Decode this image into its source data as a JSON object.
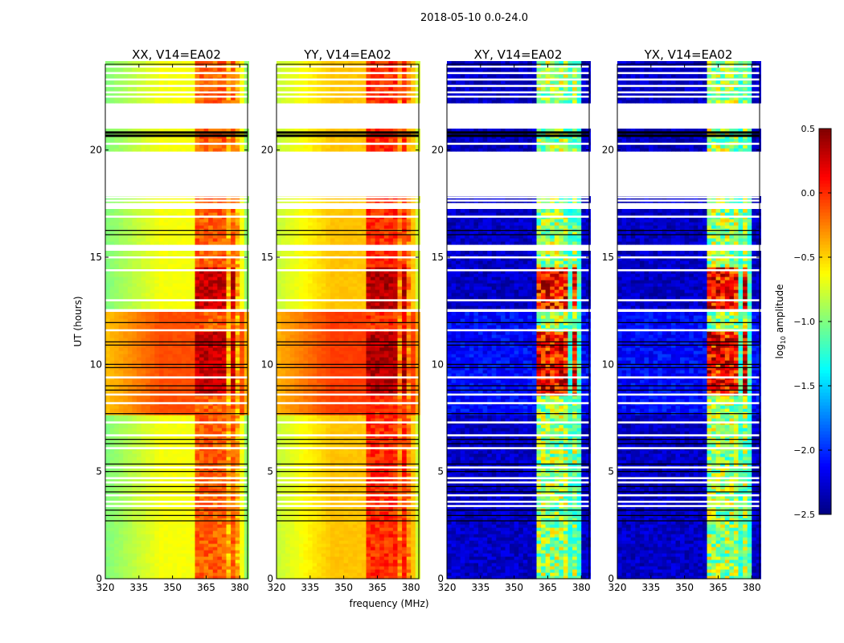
{
  "chart_data": {
    "type": "heatmap",
    "title": "2018-05-10 0.0-24.0",
    "xlabel": "frequency (MHz)",
    "ylabel": "UT (hours)",
    "xlim": [
      320,
      383.5
    ],
    "ylim": [
      0,
      24
    ],
    "xticks": [
      "320",
      "335",
      "350",
      "365",
      "380"
    ],
    "yticks": [
      "0",
      "5",
      "10",
      "15",
      "20"
    ],
    "colorbar": {
      "label": "log10 amplitude",
      "label_main": "log",
      "label_sub": "10",
      "label_rest": " amplitude",
      "range": [
        -2.5,
        0.5
      ],
      "ticks": [
        "0.5",
        "0.0",
        "−0.5",
        "−1.0",
        "−1.5",
        "−2.0",
        "−2.5"
      ],
      "colormap": "jet"
    },
    "flagged_hours": [
      [
        20.95,
        22.2
      ],
      [
        17.9,
        19.9
      ],
      [
        17.2,
        17.5
      ],
      [
        15.3,
        15.6
      ],
      [
        12.45,
        12.62
      ]
    ],
    "thin_gap_hours": [
      23.9,
      23.6,
      23.3,
      23.0,
      22.7,
      22.5,
      20.3,
      17.8,
      17.65,
      16.9,
      15.0,
      14.4,
      13.0,
      11.6,
      9.4,
      8.6,
      8.2,
      7.3,
      6.7,
      6.1,
      5.2,
      4.7,
      4.5,
      3.9,
      3.6,
      3.4
    ],
    "flag_line_hours": [
      20.85,
      20.7,
      16.25,
      16.05,
      11.95,
      11.05,
      10.9,
      10.0,
      9.85,
      9.0,
      8.8,
      7.7,
      6.5,
      6.3,
      5.35,
      5.0,
      4.3,
      4.05,
      3.2,
      2.95,
      2.7
    ],
    "bright_bands_mhz": [
      [
        360.5,
        365.5
      ],
      [
        366.5,
        370
      ],
      [
        371,
        374.5
      ],
      [
        376,
        379
      ]
    ],
    "panels": [
      {
        "title": "XX, V14=EA02",
        "baseline": -0.65,
        "band": -0.15,
        "storm_base": -0.1,
        "storm_band": 0.3
      },
      {
        "title": "YY, V14=EA02",
        "baseline": -0.45,
        "band": 0.0,
        "storm_base": -0.05,
        "storm_band": 0.35
      },
      {
        "title": "XY, V14=EA02",
        "baseline": -2.3,
        "band": -0.9,
        "storm_base": -2.1,
        "storm_band": 0.1
      },
      {
        "title": "YX, V14=EA02",
        "baseline": -2.3,
        "band": -0.9,
        "storm_base": -2.1,
        "storm_band": 0.1
      }
    ]
  }
}
